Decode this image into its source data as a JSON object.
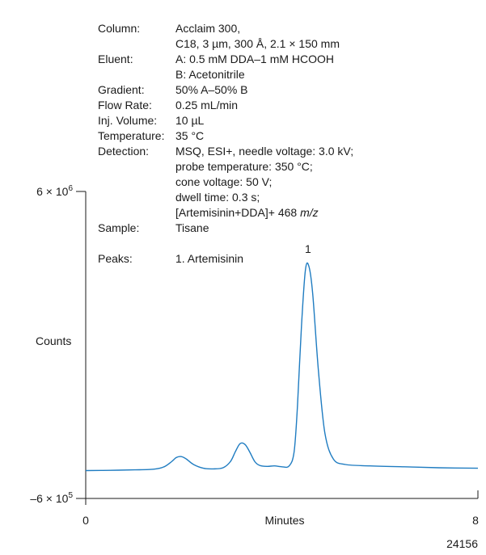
{
  "chart_data": {
    "type": "line",
    "xlabel": "Minutes",
    "ylabel": "Counts",
    "xlim": [
      0,
      8
    ],
    "ylim": [
      -600000,
      6000000
    ],
    "x_tick_labels": [
      "0",
      "8"
    ],
    "y_tick_labels": {
      "top": {
        "mantissa": "6 × 10",
        "exponent": "6"
      },
      "bottom": {
        "mantissa": "–6 × 10",
        "exponent": "5"
      }
    },
    "series": [
      {
        "color": "#1f7cc1",
        "points": [
          [
            0.0,
            0
          ],
          [
            0.5,
            5000
          ],
          [
            1.0,
            15000
          ],
          [
            1.4,
            30000
          ],
          [
            1.6,
            80000
          ],
          [
            1.75,
            190000
          ],
          [
            1.85,
            280000
          ],
          [
            1.95,
            300000
          ],
          [
            2.05,
            250000
          ],
          [
            2.2,
            130000
          ],
          [
            2.4,
            50000
          ],
          [
            2.6,
            35000
          ],
          [
            2.8,
            60000
          ],
          [
            2.95,
            190000
          ],
          [
            3.05,
            400000
          ],
          [
            3.15,
            580000
          ],
          [
            3.25,
            560000
          ],
          [
            3.35,
            390000
          ],
          [
            3.45,
            190000
          ],
          [
            3.55,
            110000
          ],
          [
            3.7,
            90000
          ],
          [
            3.85,
            100000
          ],
          [
            4.0,
            80000
          ],
          [
            4.15,
            100000
          ],
          [
            4.25,
            400000
          ],
          [
            4.32,
            1400000
          ],
          [
            4.4,
            3100000
          ],
          [
            4.48,
            4300000
          ],
          [
            4.55,
            4400000
          ],
          [
            4.63,
            3800000
          ],
          [
            4.75,
            2100000
          ],
          [
            4.88,
            800000
          ],
          [
            5.05,
            250000
          ],
          [
            5.3,
            130000
          ],
          [
            5.8,
            100000
          ],
          [
            6.5,
            80000
          ],
          [
            7.2,
            60000
          ],
          [
            8.0,
            50000
          ]
        ]
      }
    ],
    "peak_labels": [
      {
        "label": "1",
        "x": 4.55,
        "y": 4400000
      }
    ],
    "sample_code": "24156"
  },
  "info": [
    {
      "label": "Column:",
      "lines": [
        "Acclaim 300,",
        "C18, 3 µm, 300 Å, 2.1 × 150 mm"
      ]
    },
    {
      "label": "Eluent:",
      "lines": [
        "A: 0.5 mM DDA–1 mM HCOOH",
        "B: Acetonitrile"
      ]
    },
    {
      "label": "Gradient:",
      "lines": [
        "50% A–50% B"
      ]
    },
    {
      "label": "Flow Rate:",
      "lines": [
        "0.25 mL/min"
      ]
    },
    {
      "label": "Inj. Volume:",
      "lines": [
        "10 µL"
      ]
    },
    {
      "label": "Temperature:",
      "lines": [
        "35 °C"
      ]
    },
    {
      "label": "Detection:",
      "lines": [
        "MSQ, ESI+, needle voltage: 3.0 kV;",
        "probe temperature: 350 °C;",
        "cone voltage: 50 V;",
        "dwell time: 0.3 s;",
        "[Artemisinin+DDA]+ 468 m/z"
      ]
    },
    {
      "label": "Sample:",
      "lines": [
        "Tisane",
        ""
      ]
    },
    {
      "label": "Peaks:",
      "lines": [
        "1. Artemisinin"
      ]
    }
  ]
}
